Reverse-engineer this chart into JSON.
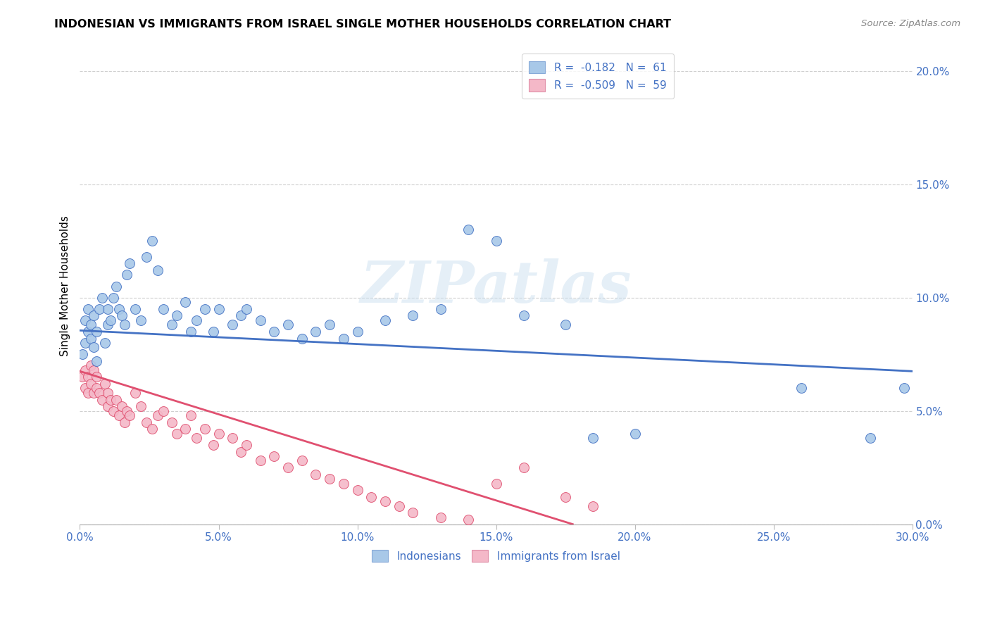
{
  "title": "INDONESIAN VS IMMIGRANTS FROM ISRAEL SINGLE MOTHER HOUSEHOLDS CORRELATION CHART",
  "source": "Source: ZipAtlas.com",
  "xlim": [
    0.0,
    0.3
  ],
  "ylim": [
    0.0,
    0.21
  ],
  "ytick_vals": [
    0.0,
    0.05,
    0.1,
    0.15,
    0.2
  ],
  "xtick_vals": [
    0.0,
    0.05,
    0.1,
    0.15,
    0.2,
    0.25,
    0.3
  ],
  "indonesian_color": "#a8c8e8",
  "israel_color": "#f4b8c8",
  "indonesian_line_color": "#4472c4",
  "israel_line_color": "#e05070",
  "legend_text_color": "#4472c4",
  "watermark_zip": "ZIP",
  "watermark_atlas": "atlas",
  "R_indonesian": -0.182,
  "N_indonesian": 61,
  "R_israel": -0.509,
  "N_israel": 59,
  "indonesian_x": [
    0.001,
    0.002,
    0.002,
    0.003,
    0.003,
    0.004,
    0.004,
    0.005,
    0.005,
    0.006,
    0.006,
    0.007,
    0.008,
    0.009,
    0.01,
    0.01,
    0.011,
    0.012,
    0.013,
    0.014,
    0.015,
    0.016,
    0.017,
    0.018,
    0.02,
    0.022,
    0.024,
    0.026,
    0.028,
    0.03,
    0.033,
    0.035,
    0.038,
    0.04,
    0.042,
    0.045,
    0.048,
    0.05,
    0.055,
    0.058,
    0.06,
    0.065,
    0.07,
    0.075,
    0.08,
    0.085,
    0.09,
    0.095,
    0.1,
    0.11,
    0.12,
    0.13,
    0.14,
    0.15,
    0.16,
    0.175,
    0.185,
    0.2,
    0.26,
    0.285,
    0.297
  ],
  "indonesian_y": [
    0.075,
    0.09,
    0.08,
    0.085,
    0.095,
    0.082,
    0.088,
    0.078,
    0.092,
    0.072,
    0.085,
    0.095,
    0.1,
    0.08,
    0.088,
    0.095,
    0.09,
    0.1,
    0.105,
    0.095,
    0.092,
    0.088,
    0.11,
    0.115,
    0.095,
    0.09,
    0.118,
    0.125,
    0.112,
    0.095,
    0.088,
    0.092,
    0.098,
    0.085,
    0.09,
    0.095,
    0.085,
    0.095,
    0.088,
    0.092,
    0.095,
    0.09,
    0.085,
    0.088,
    0.082,
    0.085,
    0.088,
    0.082,
    0.085,
    0.09,
    0.092,
    0.095,
    0.13,
    0.125,
    0.092,
    0.088,
    0.038,
    0.04,
    0.06,
    0.038,
    0.06
  ],
  "israel_x": [
    0.001,
    0.002,
    0.002,
    0.003,
    0.003,
    0.004,
    0.004,
    0.005,
    0.005,
    0.006,
    0.006,
    0.007,
    0.008,
    0.009,
    0.01,
    0.01,
    0.011,
    0.012,
    0.013,
    0.014,
    0.015,
    0.016,
    0.017,
    0.018,
    0.02,
    0.022,
    0.024,
    0.026,
    0.028,
    0.03,
    0.033,
    0.035,
    0.038,
    0.04,
    0.042,
    0.045,
    0.048,
    0.05,
    0.055,
    0.058,
    0.06,
    0.065,
    0.07,
    0.075,
    0.08,
    0.085,
    0.09,
    0.095,
    0.1,
    0.105,
    0.11,
    0.115,
    0.12,
    0.13,
    0.14,
    0.15,
    0.16,
    0.175,
    0.185
  ],
  "israel_y": [
    0.065,
    0.06,
    0.068,
    0.058,
    0.065,
    0.07,
    0.062,
    0.068,
    0.058,
    0.065,
    0.06,
    0.058,
    0.055,
    0.062,
    0.058,
    0.052,
    0.055,
    0.05,
    0.055,
    0.048,
    0.052,
    0.045,
    0.05,
    0.048,
    0.058,
    0.052,
    0.045,
    0.042,
    0.048,
    0.05,
    0.045,
    0.04,
    0.042,
    0.048,
    0.038,
    0.042,
    0.035,
    0.04,
    0.038,
    0.032,
    0.035,
    0.028,
    0.03,
    0.025,
    0.028,
    0.022,
    0.02,
    0.018,
    0.015,
    0.012,
    0.01,
    0.008,
    0.005,
    0.003,
    0.002,
    0.018,
    0.025,
    0.012,
    0.008
  ]
}
